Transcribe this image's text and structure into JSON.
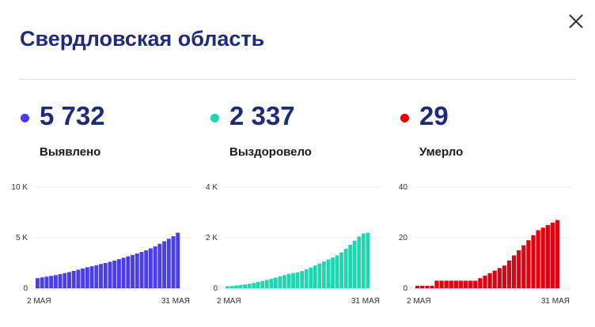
{
  "header": {
    "title": "Свердловская область",
    "close_icon": "close-icon"
  },
  "stats": [
    {
      "value": "5 732",
      "label": "Выявлено",
      "color": "#4b3cf0"
    },
    {
      "value": "2 337",
      "label": "Выздоровело",
      "color": "#1ed6b0"
    },
    {
      "value": "29",
      "label": "Умерло",
      "color": "#e0000f"
    }
  ],
  "chart_data": [
    {
      "type": "bar",
      "series": [
        {
          "values": [
            1000,
            1080,
            1150,
            1230,
            1300,
            1400,
            1500,
            1600,
            1720,
            1840,
            1960,
            2080,
            2180,
            2280,
            2400,
            2500,
            2620,
            2740,
            2880,
            3020,
            3160,
            3300,
            3450,
            3600,
            3750,
            3950,
            4150,
            4400,
            4650,
            4900,
            5150,
            5500
          ]
        }
      ],
      "ylim": [
        0,
        10000
      ],
      "yticks": [
        "10 K",
        "5 K",
        "0"
      ],
      "ytick_values": [
        10000,
        5000,
        0
      ],
      "xticks": [
        "2 МАЯ",
        "31 МАЯ"
      ],
      "color": "#4b3cf0",
      "grid": true
    },
    {
      "type": "bar",
      "series": [
        {
          "values": [
            80,
            90,
            110,
            130,
            150,
            180,
            210,
            250,
            290,
            330,
            370,
            420,
            470,
            520,
            570,
            600,
            630,
            680,
            750,
            820,
            900,
            980,
            1060,
            1140,
            1220,
            1300,
            1420,
            1560,
            1720,
            1880,
            2050,
            2170,
            2200
          ]
        }
      ],
      "ylim": [
        0,
        4000
      ],
      "yticks": [
        "4 K",
        "2 K",
        "0"
      ],
      "ytick_values": [
        4000,
        2000,
        0
      ],
      "xticks": [
        "2 МАЯ",
        "31 МАЯ"
      ],
      "color": "#1ed6b0",
      "grid": true
    },
    {
      "type": "bar",
      "series": [
        {
          "values": [
            1,
            1,
            1,
            1,
            3,
            3,
            3,
            3,
            3,
            3,
            3,
            3,
            3,
            4,
            5,
            6,
            7,
            8,
            9,
            11,
            13,
            15,
            17,
            19,
            21,
            23,
            24,
            25,
            26,
            27
          ]
        }
      ],
      "ylim": [
        0,
        40
      ],
      "yticks": [
        "40",
        "20",
        "0"
      ],
      "ytick_values": [
        40,
        20,
        0
      ],
      "xticks": [
        "2 МАЯ",
        "31 МАЯ"
      ],
      "color": "#e0000f",
      "grid": true
    }
  ]
}
